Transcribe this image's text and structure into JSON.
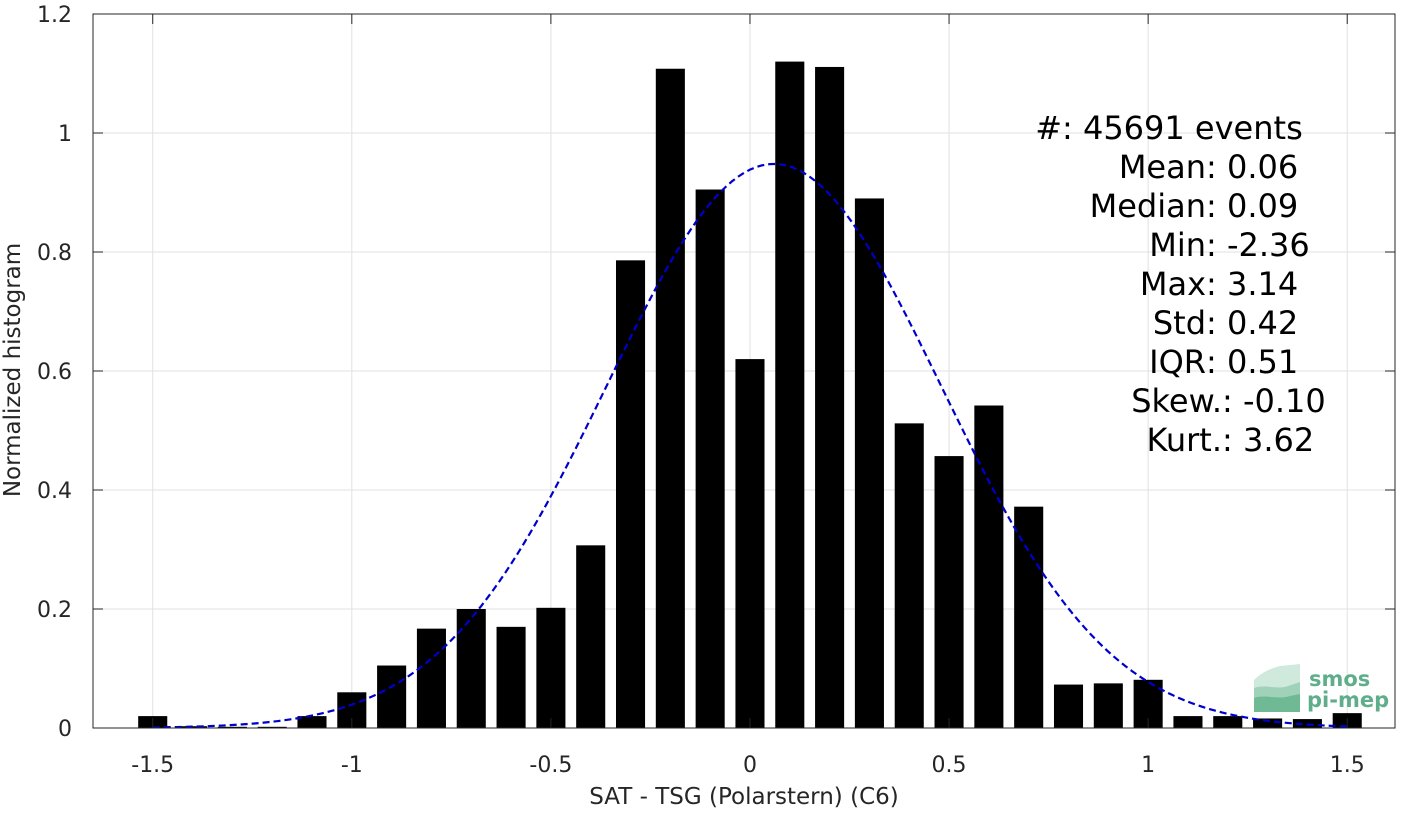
{
  "chart_data": {
    "type": "bar",
    "xlabel": "SAT - TSG (Polarstern) (C6)",
    "ylabel": "Normalized histogram",
    "xlim": [
      -1.65,
      1.62
    ],
    "ylim": [
      0,
      1.2
    ],
    "grid": true,
    "x_ticks": [
      -1.5,
      -1,
      -0.5,
      0,
      0.5,
      1,
      1.5
    ],
    "x_tick_labels": [
      "-1.5",
      "-1",
      "-0.5",
      "0",
      "0.5",
      "1",
      "1.5"
    ],
    "y_ticks": [
      0,
      0.2,
      0.4,
      0.6,
      0.8,
      1.0,
      1.2
    ],
    "y_tick_labels": [
      "0",
      "0.2",
      "0.4",
      "0.6",
      "0.8",
      "1",
      "1.2"
    ],
    "bar_color": "#000000",
    "bar_width": 0.073,
    "x": [
      -1.5,
      -1.4,
      -1.3,
      -1.2,
      -1.1,
      -1.0,
      -0.9,
      -0.8,
      -0.7,
      -0.6,
      -0.5,
      -0.4,
      -0.3,
      -0.2,
      -0.1,
      0.0,
      0.1,
      0.2,
      0.3,
      0.4,
      0.5,
      0.6,
      0.7,
      0.8,
      0.9,
      1.0,
      1.1,
      1.2,
      1.3,
      1.4,
      1.5
    ],
    "values": [
      0.02,
      0.003,
      0.002,
      0.002,
      0.02,
      0.06,
      0.105,
      0.167,
      0.2,
      0.17,
      0.202,
      0.307,
      0.786,
      1.108,
      0.905,
      0.62,
      1.12,
      1.111,
      0.89,
      0.512,
      0.457,
      0.542,
      0.372,
      0.073,
      0.075,
      0.081,
      0.02,
      0.02,
      0.016,
      0.015,
      0.025
    ],
    "fit": {
      "type": "normal-fit",
      "color": "#0000cc",
      "line_style": "dashed",
      "mean": 0.06,
      "std": 0.42,
      "peak": 0.948
    },
    "stats": [
      {
        "label": "#  ",
        "value": ": 45691 events"
      },
      {
        "label": "Mean ",
        "value": ": 0.06"
      },
      {
        "label": "Median ",
        "value": ": 0.09"
      },
      {
        "label": "Min ",
        "value": ": -2.36"
      },
      {
        "label": "Max ",
        "value": ": 3.14"
      },
      {
        "label": "Std ",
        "value": ": 0.42"
      },
      {
        "label": "IQR ",
        "value": ": 0.51"
      },
      {
        "label": "Skew. ",
        "value": ": -0.10"
      },
      {
        "label": "Kurt. ",
        "value": ": 3.62"
      }
    ]
  },
  "logo": {
    "line1": "smos",
    "line2": "pi-mep",
    "color": "#5fae8b"
  }
}
